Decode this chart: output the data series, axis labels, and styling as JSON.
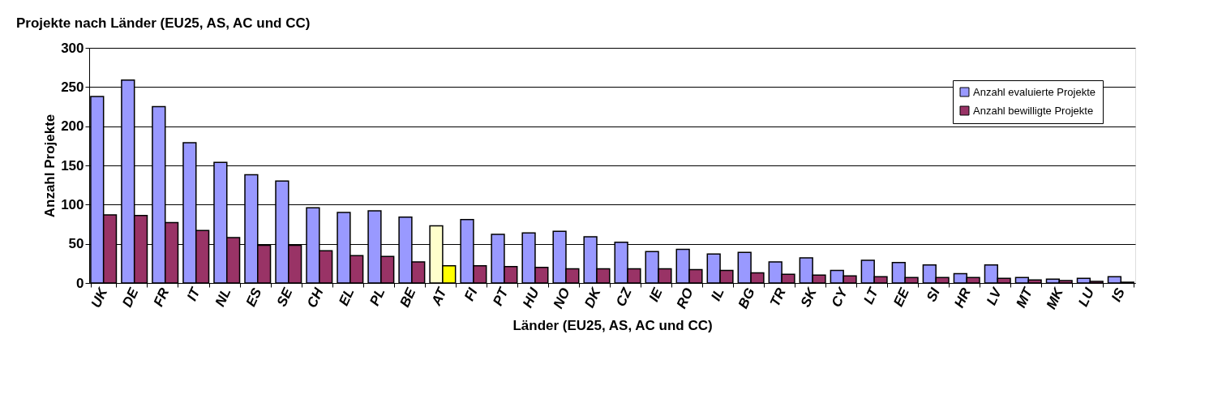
{
  "chart_data": {
    "type": "bar",
    "title": "Projekte nach Länder (EU25, AS, AC und CC)",
    "xlabel": "Länder (EU25, AS, AC und CC)",
    "ylabel": "Anzahl Projekte",
    "categories": [
      "UK",
      "DE",
      "FR",
      "IT",
      "NL",
      "ES",
      "SE",
      "CH",
      "EL",
      "PL",
      "BE",
      "AT",
      "FI",
      "PT",
      "HU",
      "NO",
      "DK",
      "CZ",
      "IE",
      "RO",
      "IL",
      "BG",
      "TR",
      "SK",
      "CY",
      "LT",
      "EE",
      "SI",
      "HR",
      "LV",
      "MT",
      "MK",
      "LU",
      "IS"
    ],
    "series": [
      {
        "name": "Anzahl evaluierte Projekte",
        "color": "#9999ff",
        "colors": [
          "#9999ff",
          "#9999ff",
          "#9999ff",
          "#9999ff",
          "#9999ff",
          "#9999ff",
          "#9999ff",
          "#9999ff",
          "#9999ff",
          "#9999ff",
          "#9999ff",
          "#ffffcc",
          "#9999ff",
          "#9999ff",
          "#9999ff",
          "#9999ff",
          "#9999ff",
          "#9999ff",
          "#9999ff",
          "#9999ff",
          "#9999ff",
          "#9999ff",
          "#9999ff",
          "#9999ff",
          "#9999ff",
          "#9999ff",
          "#9999ff",
          "#9999ff",
          "#9999ff",
          "#9999ff",
          "#9999ff",
          "#9999ff",
          "#9999ff",
          "#9999ff"
        ],
        "values": [
          238,
          259,
          225,
          179,
          154,
          138,
          130,
          96,
          90,
          92,
          84,
          73,
          81,
          62,
          64,
          66,
          59,
          52,
          40,
          43,
          37,
          39,
          27,
          32,
          16,
          29,
          26,
          23,
          12,
          23,
          7,
          5,
          6,
          8
        ]
      },
      {
        "name": "Anzahl bewilligte Projekte",
        "color": "#993366",
        "colors": [
          "#993366",
          "#993366",
          "#993366",
          "#993366",
          "#993366",
          "#993366",
          "#993366",
          "#993366",
          "#993366",
          "#993366",
          "#993366",
          "#ffff00",
          "#993366",
          "#993366",
          "#993366",
          "#993366",
          "#993366",
          "#993366",
          "#993366",
          "#993366",
          "#993366",
          "#993366",
          "#993366",
          "#993366",
          "#993366",
          "#993366",
          "#993366",
          "#993366",
          "#993366",
          "#993366",
          "#993366",
          "#993366",
          "#993366",
          "#993366"
        ],
        "values": [
          87,
          86,
          77,
          67,
          58,
          48,
          48,
          41,
          35,
          34,
          27,
          22,
          22,
          21,
          20,
          18,
          18,
          18,
          18,
          17,
          16,
          13,
          11,
          10,
          9,
          8,
          7,
          7,
          7,
          6,
          4,
          3,
          2,
          1
        ]
      }
    ],
    "ylim": [
      0,
      300
    ],
    "yticks": [
      0,
      50,
      100,
      150,
      200,
      250,
      300
    ],
    "grid": "y",
    "legend": "top right"
  }
}
